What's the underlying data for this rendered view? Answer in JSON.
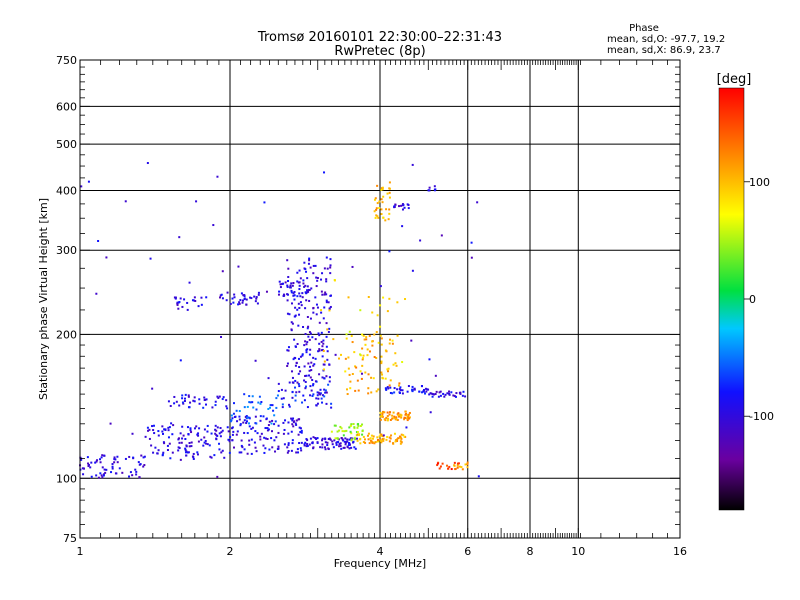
{
  "chart_data": {
    "type": "scatter",
    "title": "Tromsø 20160101 22:30:00–22:31:43",
    "subtitle": "RwPretec (8p)",
    "xlabel": "Frequency [MHz]",
    "ylabel": "Stationary phase Virtual Height [km]",
    "xscale": "log",
    "yscale": "log",
    "xlim": [
      1,
      16
    ],
    "ylim": [
      75,
      750
    ],
    "x_ticks": [
      "1",
      "2",
      "4",
      "6",
      "8",
      "10",
      "16"
    ],
    "y_ticks": [
      "75",
      "100",
      "200",
      "300",
      "400",
      "500",
      "600",
      "750"
    ],
    "grid": true,
    "colorbar": {
      "label": "[deg]",
      "min": -180,
      "max": 180,
      "tick_labels": [
        "100",
        "0",
        "-100"
      ],
      "tick_values": [
        100,
        0,
        -100
      ]
    },
    "stats": {
      "heading": "Phase",
      "line_o": "mean, sd,O: -97.7, 19.2",
      "line_x": "mean, sd,X:  86.9, 23.7"
    },
    "clusters": [
      {
        "f": [
          1.0,
          1.35
        ],
        "h": [
          100,
          112
        ],
        "phase": -100,
        "n": 70
      },
      {
        "f": [
          1.35,
          2.0
        ],
        "h": [
          110,
          130
        ],
        "phase": -100,
        "n": 120
      },
      {
        "f": [
          2.0,
          2.8
        ],
        "h": [
          112,
          135
        ],
        "phase": -100,
        "n": 120
      },
      {
        "f": [
          2.8,
          3.6
        ],
        "h": [
          115,
          122
        ],
        "phase": -100,
        "n": 80
      },
      {
        "f": [
          1.5,
          2.0
        ],
        "h": [
          140,
          150
        ],
        "phase": -95,
        "n": 40
      },
      {
        "f": [
          2.0,
          2.5
        ],
        "h": [
          130,
          150
        ],
        "phase": -60,
        "n": 40
      },
      {
        "f": [
          2.5,
          3.2
        ],
        "h": [
          140,
          160
        ],
        "phase": -80,
        "n": 50
      },
      {
        "f": [
          3.2,
          3.7
        ],
        "h": [
          120,
          130
        ],
        "phase": 40,
        "n": 40
      },
      {
        "f": [
          3.6,
          4.5
        ],
        "h": [
          118,
          124
        ],
        "phase": 105,
        "n": 70
      },
      {
        "f": [
          3.4,
          4.4
        ],
        "h": [
          150,
          200
        ],
        "phase": 105,
        "n": 70
      },
      {
        "f": [
          4.0,
          4.6
        ],
        "h": [
          132,
          138
        ],
        "phase": 110,
        "n": 60
      },
      {
        "f": [
          4.1,
          5.0
        ],
        "h": [
          150,
          156
        ],
        "phase": -90,
        "n": 40
      },
      {
        "f": [
          5.0,
          6.0
        ],
        "h": [
          148,
          152
        ],
        "phase": -100,
        "n": 30
      },
      {
        "f": [
          2.6,
          3.2
        ],
        "h": [
          150,
          290
        ],
        "phase": -100,
        "n": 200
      },
      {
        "f": [
          2.5,
          2.9
        ],
        "h": [
          240,
          260
        ],
        "phase": -100,
        "n": 40
      },
      {
        "f": [
          1.9,
          2.3
        ],
        "h": [
          230,
          245
        ],
        "phase": -100,
        "n": 35
      },
      {
        "f": [
          1.55,
          1.8
        ],
        "h": [
          225,
          240
        ],
        "phase": -100,
        "n": 20
      },
      {
        "f": [
          3.9,
          4.2
        ],
        "h": [
          345,
          420
        ],
        "phase": 100,
        "n": 35
      },
      {
        "f": [
          4.2,
          4.6
        ],
        "h": [
          365,
          375
        ],
        "phase": -100,
        "n": 15
      },
      {
        "f": [
          5.0,
          5.2
        ],
        "h": [
          400,
          410
        ],
        "phase": -100,
        "n": 8
      },
      {
        "f": [
          5.2,
          5.8
        ],
        "h": [
          104,
          108
        ],
        "phase": 160,
        "n": 15
      },
      {
        "f": [
          5.6,
          6.0
        ],
        "h": [
          104,
          108
        ],
        "phase": 110,
        "n": 12
      },
      {
        "f": [
          3.0,
          4.5
        ],
        "h": [
          160,
          260
        ],
        "phase": 80,
        "n": 40
      },
      {
        "f": [
          1.0,
          6.5
        ],
        "h": [
          100,
          460
        ],
        "phase": -100,
        "n": 60
      }
    ]
  }
}
